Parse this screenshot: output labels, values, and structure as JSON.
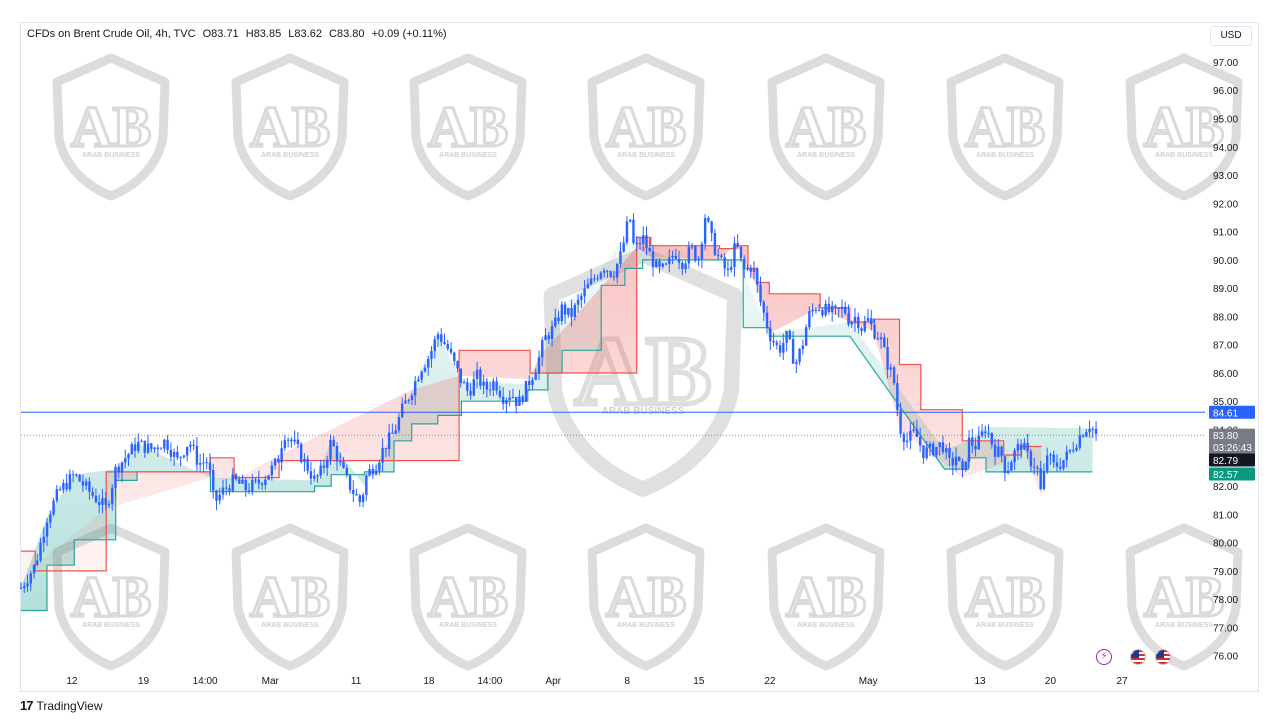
{
  "legend": {
    "symbol": "CFDs on Brent Crude Oil, 4h, TVC",
    "open": "O83.71",
    "high": "H83.85",
    "low": "L83.62",
    "close": "C83.80",
    "change": "+0.09 (+0.11%)"
  },
  "currency": "USD",
  "watermark_text": "ARAB BUSINESS",
  "brand": {
    "mark": "17",
    "name": "TradingView"
  },
  "colors": {
    "candle": "#2962ff",
    "bear_line": "#ef5350",
    "bull_line": "#26a69a",
    "level_line": "#2962ff",
    "last_price_line": "#787b86"
  },
  "icons": [
    "lightning-icon",
    "us-flag-icon",
    "us-flag-icon"
  ],
  "chart_data": {
    "type": "line",
    "title": "CFDs on Brent Crude Oil, 4h, TVC",
    "ylim": [
      75.6,
      97.6
    ],
    "grid": false,
    "y_ticks": [
      "97.00",
      "96.00",
      "95.00",
      "94.00",
      "93.00",
      "92.00",
      "91.00",
      "90.00",
      "89.00",
      "88.00",
      "87.00",
      "86.00",
      "85.00",
      "84.00",
      "83.00",
      "82.00",
      "81.00",
      "80.00",
      "79.00",
      "78.00",
      "77.00",
      "76.00"
    ],
    "x_ticks": [
      {
        "label": "12",
        "t": 0.043
      },
      {
        "label": "19",
        "t": 0.1035
      },
      {
        "label": "14:00",
        "t": 0.1555
      },
      {
        "label": "Mar",
        "t": 0.2105
      },
      {
        "label": "11",
        "t": 0.283
      },
      {
        "label": "18",
        "t": 0.3445
      },
      {
        "label": "14:00",
        "t": 0.396
      },
      {
        "label": "Apr",
        "t": 0.4495
      },
      {
        "label": "8",
        "t": 0.512
      },
      {
        "label": "15",
        "t": 0.5725
      },
      {
        "label": "22",
        "t": 0.6325
      },
      {
        "label": "May",
        "t": 0.7155
      },
      {
        "label": "13",
        "t": 0.81
      },
      {
        "label": "20",
        "t": 0.8695
      },
      {
        "label": "27",
        "t": 0.93
      }
    ],
    "series": [
      {
        "type": "price",
        "points": [
          [
            0.0,
            78.4
          ],
          [
            0.012,
            79.2
          ],
          [
            0.022,
            80.9
          ],
          [
            0.032,
            81.8
          ],
          [
            0.045,
            82.4
          ],
          [
            0.06,
            81.7
          ],
          [
            0.072,
            81.2
          ],
          [
            0.08,
            82.6
          ],
          [
            0.088,
            83.0
          ],
          [
            0.098,
            83.5
          ],
          [
            0.11,
            83.3
          ],
          [
            0.122,
            83.6
          ],
          [
            0.132,
            82.9
          ],
          [
            0.142,
            83.6
          ],
          [
            0.15,
            82.8
          ],
          [
            0.158,
            82.9
          ],
          [
            0.163,
            81.4
          ],
          [
            0.172,
            81.9
          ],
          [
            0.18,
            82.2
          ],
          [
            0.19,
            81.9
          ],
          [
            0.2,
            82.1
          ],
          [
            0.21,
            82.5
          ],
          [
            0.217,
            82.9
          ],
          [
            0.222,
            83.9
          ],
          [
            0.232,
            83.4
          ],
          [
            0.24,
            82.8
          ],
          [
            0.248,
            82.2
          ],
          [
            0.255,
            82.6
          ],
          [
            0.262,
            83.6
          ],
          [
            0.27,
            82.7
          ],
          [
            0.275,
            82.2
          ],
          [
            0.282,
            81.7
          ],
          [
            0.287,
            81.4
          ],
          [
            0.292,
            82.4
          ],
          [
            0.3,
            82.8
          ],
          [
            0.307,
            83.4
          ],
          [
            0.315,
            83.9
          ],
          [
            0.322,
            84.7
          ],
          [
            0.33,
            85.4
          ],
          [
            0.338,
            86.2
          ],
          [
            0.345,
            86.6
          ],
          [
            0.352,
            87.4
          ],
          [
            0.36,
            86.9
          ],
          [
            0.366,
            86.3
          ],
          [
            0.372,
            85.7
          ],
          [
            0.378,
            85.3
          ],
          [
            0.385,
            85.9
          ],
          [
            0.392,
            85.4
          ],
          [
            0.4,
            85.7
          ],
          [
            0.408,
            85.1
          ],
          [
            0.414,
            85.3
          ],
          [
            0.42,
            84.9
          ],
          [
            0.428,
            85.6
          ],
          [
            0.436,
            86.3
          ],
          [
            0.442,
            87.2
          ],
          [
            0.45,
            87.6
          ],
          [
            0.457,
            88.3
          ],
          [
            0.464,
            88.0
          ],
          [
            0.472,
            88.6
          ],
          [
            0.478,
            89.0
          ],
          [
            0.485,
            89.4
          ],
          [
            0.492,
            89.8
          ],
          [
            0.5,
            89.5
          ],
          [
            0.507,
            90.2
          ],
          [
            0.514,
            91.6
          ],
          [
            0.518,
            90.3
          ],
          [
            0.525,
            90.8
          ],
          [
            0.532,
            90.1
          ],
          [
            0.538,
            89.6
          ],
          [
            0.545,
            89.7
          ],
          [
            0.552,
            90.3
          ],
          [
            0.559,
            89.9
          ],
          [
            0.566,
            90.4
          ],
          [
            0.572,
            90.0
          ],
          [
            0.578,
            91.6
          ],
          [
            0.584,
            90.6
          ],
          [
            0.59,
            90.0
          ],
          [
            0.597,
            89.5
          ],
          [
            0.604,
            90.6
          ],
          [
            0.61,
            89.6
          ],
          [
            0.618,
            89.8
          ],
          [
            0.624,
            88.6
          ],
          [
            0.632,
            87.4
          ],
          [
            0.64,
            86.8
          ],
          [
            0.647,
            87.3
          ],
          [
            0.654,
            86.3
          ],
          [
            0.66,
            87.0
          ],
          [
            0.665,
            88.0
          ],
          [
            0.672,
            88.4
          ],
          [
            0.68,
            88.2
          ],
          [
            0.688,
            88.1
          ],
          [
            0.695,
            88.3
          ],
          [
            0.7,
            87.8
          ],
          [
            0.705,
            88.0
          ],
          [
            0.71,
            87.6
          ],
          [
            0.715,
            87.9
          ],
          [
            0.72,
            87.5
          ],
          [
            0.726,
            87.2
          ],
          [
            0.732,
            86.3
          ],
          [
            0.737,
            85.8
          ],
          [
            0.742,
            84.1
          ],
          [
            0.748,
            83.6
          ],
          [
            0.755,
            83.9
          ],
          [
            0.762,
            83.2
          ],
          [
            0.77,
            83.3
          ],
          [
            0.778,
            83.5
          ],
          [
            0.785,
            82.7
          ],
          [
            0.79,
            83.1
          ],
          [
            0.795,
            82.3
          ],
          [
            0.8,
            83.6
          ],
          [
            0.807,
            83.4
          ],
          [
            0.815,
            84.1
          ],
          [
            0.822,
            83.3
          ],
          [
            0.828,
            83.1
          ],
          [
            0.832,
            82.5
          ],
          [
            0.838,
            83.1
          ],
          [
            0.845,
            83.5
          ],
          [
            0.852,
            82.9
          ],
          [
            0.858,
            82.7
          ],
          [
            0.862,
            81.6
          ],
          [
            0.866,
            83.2
          ],
          [
            0.872,
            82.7
          ],
          [
            0.878,
            82.8
          ],
          [
            0.884,
            83.1
          ],
          [
            0.89,
            83.5
          ],
          [
            0.896,
            83.9
          ],
          [
            0.903,
            84.2
          ],
          [
            0.908,
            83.8
          ]
        ]
      },
      {
        "type": "bear-trail",
        "steps": [
          [
            0.0,
            79.7
          ],
          [
            0.012,
            79.7
          ],
          [
            0.012,
            79.0
          ],
          [
            0.072,
            79.0
          ],
          [
            0.072,
            82.5
          ],
          [
            0.16,
            82.5
          ],
          [
            0.16,
            83.0
          ],
          [
            0.18,
            83.0
          ],
          [
            0.18,
            82.3
          ],
          [
            0.218,
            82.3
          ],
          [
            0.218,
            82.9
          ],
          [
            0.33,
            82.9
          ],
          [
            0.33,
            82.9
          ],
          [
            0.37,
            82.9
          ],
          [
            0.37,
            86.8
          ],
          [
            0.43,
            86.8
          ],
          [
            0.43,
            86.0
          ],
          [
            0.438,
            86.0
          ],
          [
            0.52,
            86.0
          ],
          [
            0.52,
            90.8
          ],
          [
            0.532,
            90.8
          ],
          [
            0.532,
            90.5
          ],
          [
            0.59,
            90.5
          ],
          [
            0.59,
            90.4
          ],
          [
            0.604,
            90.4
          ],
          [
            0.604,
            90.5
          ],
          [
            0.614,
            90.5
          ],
          [
            0.614,
            89.7
          ],
          [
            0.622,
            89.7
          ],
          [
            0.622,
            89.2
          ],
          [
            0.632,
            89.2
          ],
          [
            0.632,
            88.8
          ],
          [
            0.675,
            88.8
          ],
          [
            0.675,
            88.3
          ],
          [
            0.7,
            88.3
          ],
          [
            0.7,
            87.8
          ],
          [
            0.72,
            87.8
          ],
          [
            0.72,
            87.9
          ],
          [
            0.742,
            87.9
          ],
          [
            0.742,
            86.3
          ],
          [
            0.76,
            86.3
          ],
          [
            0.76,
            84.7
          ],
          [
            0.795,
            84.7
          ],
          [
            0.795,
            83.6
          ],
          [
            0.83,
            83.6
          ],
          [
            0.83,
            83.1
          ],
          [
            0.845,
            83.1
          ],
          [
            0.845,
            83.4
          ],
          [
            0.862,
            83.4
          ]
        ]
      },
      {
        "type": "bull-trail",
        "steps": [
          [
            0.0,
            77.6
          ],
          [
            0.022,
            77.6
          ],
          [
            0.022,
            79.2
          ],
          [
            0.045,
            79.2
          ],
          [
            0.045,
            80.1
          ],
          [
            0.08,
            80.1
          ],
          [
            0.08,
            82.2
          ],
          [
            0.098,
            82.2
          ],
          [
            0.098,
            82.5
          ],
          [
            0.16,
            82.5
          ],
          [
            0.16,
            81.8
          ],
          [
            0.248,
            81.8
          ],
          [
            0.248,
            82.0
          ],
          [
            0.262,
            82.0
          ],
          [
            0.262,
            82.4
          ],
          [
            0.29,
            82.4
          ],
          [
            0.29,
            82.5
          ],
          [
            0.315,
            82.5
          ],
          [
            0.315,
            83.6
          ],
          [
            0.33,
            83.6
          ],
          [
            0.33,
            84.2
          ],
          [
            0.352,
            84.2
          ],
          [
            0.352,
            84.5
          ],
          [
            0.372,
            84.5
          ],
          [
            0.372,
            85.0
          ],
          [
            0.428,
            85.0
          ],
          [
            0.428,
            85.4
          ],
          [
            0.445,
            85.4
          ],
          [
            0.445,
            86.0
          ],
          [
            0.457,
            86.0
          ],
          [
            0.457,
            86.8
          ],
          [
            0.49,
            86.8
          ],
          [
            0.49,
            89.1
          ],
          [
            0.51,
            89.1
          ],
          [
            0.51,
            89.7
          ],
          [
            0.525,
            89.7
          ],
          [
            0.525,
            90.0
          ],
          [
            0.61,
            90.0
          ],
          [
            0.61,
            87.6
          ],
          [
            0.632,
            87.6
          ],
          [
            0.632,
            87.3
          ],
          [
            0.7,
            87.3
          ],
          [
            0.78,
            82.6
          ],
          [
            0.8,
            82.6
          ],
          [
            0.8,
            83.0
          ],
          [
            0.815,
            83.0
          ],
          [
            0.815,
            82.5
          ],
          [
            0.905,
            82.5
          ]
        ]
      }
    ],
    "price_labels": [
      {
        "value": 84.61,
        "label": "84.61",
        "kind": "level"
      },
      {
        "value": 83.8,
        "label": "83.80",
        "sub": "03:26:43",
        "kind": "last"
      },
      {
        "value": 82.79,
        "label": "82.79",
        "kind": "bear"
      },
      {
        "value": 82.57,
        "label": "82.57",
        "kind": "bull"
      }
    ]
  }
}
